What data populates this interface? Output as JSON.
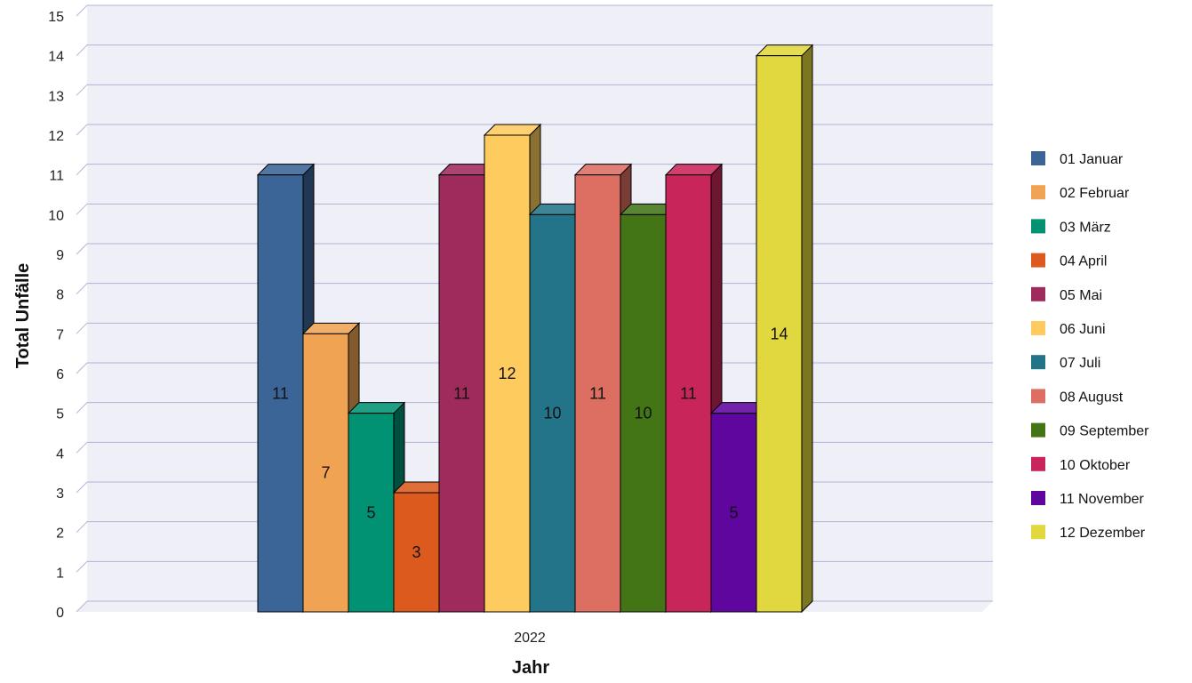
{
  "chart_data": {
    "type": "bar",
    "title": "",
    "xlabel": "Jahr",
    "ylabel": "Total Unfälle",
    "categories": [
      "2022"
    ],
    "ylim": [
      0,
      15
    ],
    "yticks": [
      0,
      1,
      2,
      3,
      4,
      5,
      6,
      7,
      8,
      9,
      10,
      11,
      12,
      13,
      14,
      15
    ],
    "grid": true,
    "legend_position": "right",
    "three_d": true,
    "series": [
      {
        "name": "01 Januar",
        "values": [
          11
        ],
        "color": "#3a6596"
      },
      {
        "name": "02 Februar",
        "values": [
          7
        ],
        "color": "#efa353"
      },
      {
        "name": "03 März",
        "values": [
          5
        ],
        "color": "#009272"
      },
      {
        "name": "04 April",
        "values": [
          3
        ],
        "color": "#dd5a1e"
      },
      {
        "name": "05 Mai",
        "values": [
          11
        ],
        "color": "#9f2a5c"
      },
      {
        "name": "06 Juni",
        "values": [
          12
        ],
        "color": "#fdcb5e"
      },
      {
        "name": "07 Juli",
        "values": [
          10
        ],
        "color": "#247489"
      },
      {
        "name": "08 August",
        "values": [
          11
        ],
        "color": "#dc6e62"
      },
      {
        "name": "09 September",
        "values": [
          10
        ],
        "color": "#437517"
      },
      {
        "name": "10 Oktober",
        "values": [
          11
        ],
        "color": "#c8265a"
      },
      {
        "name": "11 November",
        "values": [
          5
        ],
        "color": "#5e069d"
      },
      {
        "name": "12 Dezember",
        "values": [
          14
        ],
        "color": "#e1d73e"
      }
    ]
  },
  "colors": {
    "plot_background": "#efeff7",
    "gridline": "#b3b3d4",
    "bar_outline": "#000000"
  }
}
